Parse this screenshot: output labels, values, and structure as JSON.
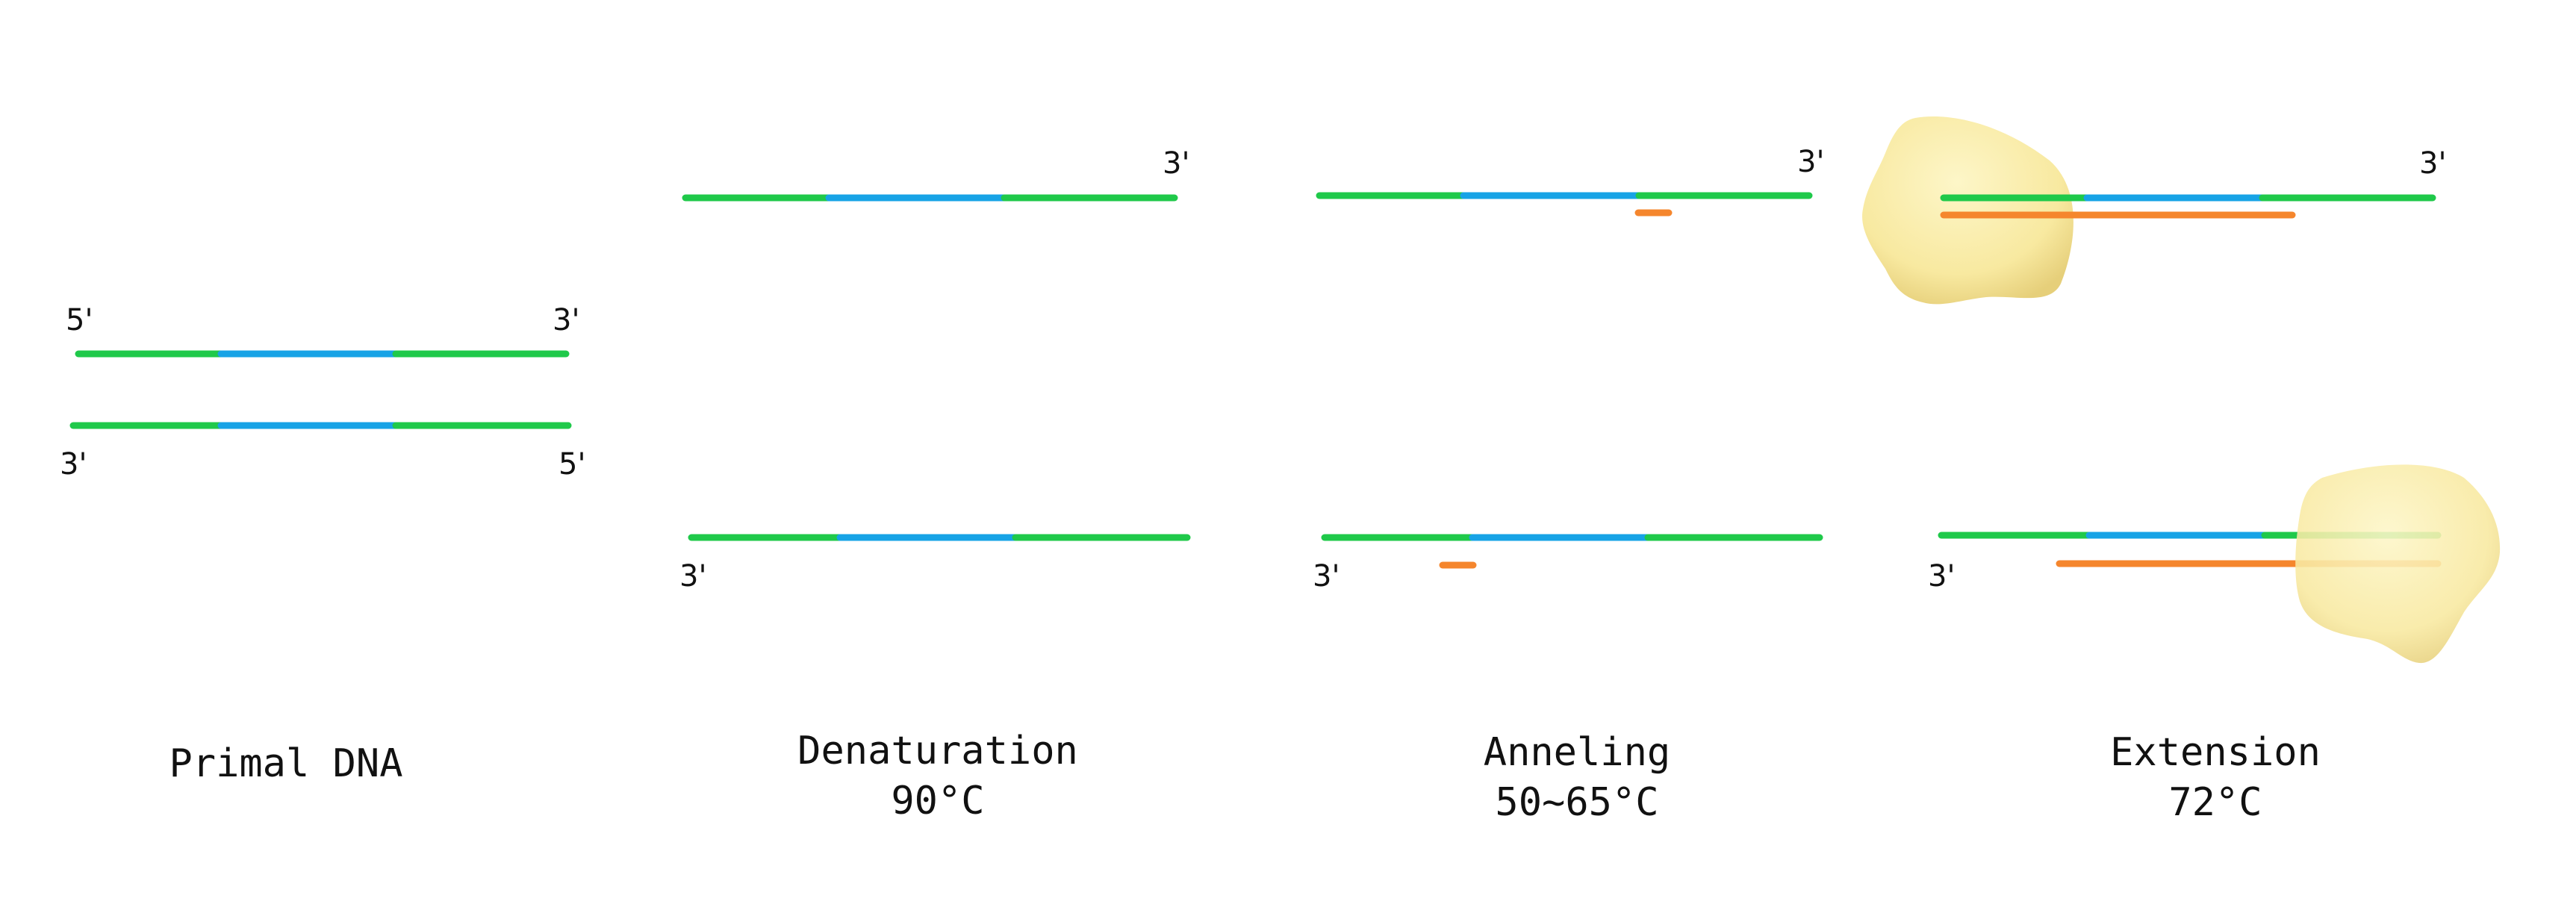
{
  "colors": {
    "flank": "#1fc94a",
    "target": "#17a3e6",
    "primer": "#f5862d",
    "polymerase_fill": "#f9eba3",
    "polymerase_shade": "#e7d07c",
    "text": "#111111"
  },
  "stages": [
    {
      "id": "primal-dna",
      "name": "Primal DNA",
      "temp": "",
      "labels": {
        "top_left": "5'",
        "top_right": "3'",
        "bottom_left": "3'",
        "bottom_right": "5'"
      }
    },
    {
      "id": "denaturation",
      "name": "Denaturation",
      "temp": "90°C",
      "labels": {
        "top_right": "3'",
        "bottom_left": "3'"
      }
    },
    {
      "id": "anneling",
      "name": "Anneling",
      "temp": "50~65°C",
      "labels": {
        "top_right": "3'",
        "bottom_left": "3'"
      }
    },
    {
      "id": "extension",
      "name": "Extension",
      "temp": "72°C",
      "labels": {
        "top_right": "3'",
        "bottom_left": "3'"
      }
    }
  ],
  "icons": {
    "polymerase": "polymerase-blob-icon"
  }
}
